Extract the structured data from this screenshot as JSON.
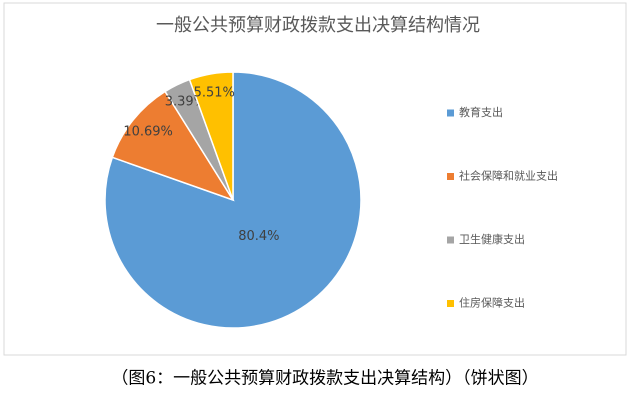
{
  "chart_data": {
    "type": "pie",
    "title": "一般公共预算财政拨款支出决算结构情况",
    "categories": [
      "教育支出",
      "社会保障和就业支出",
      "卫生健康支出",
      "住房保障支出"
    ],
    "values": [
      80.4,
      10.69,
      3.39,
      5.51
    ],
    "value_labels": [
      "80.4%",
      "10.69%",
      "3.39%",
      "5.51%"
    ],
    "colors": [
      "#5b9bd5",
      "#ed7d31",
      "#a5a5a5",
      "#ffc000"
    ],
    "legend": "right"
  },
  "caption": "（图6：一般公共预算财政拨款支出决算结构）（饼状图）"
}
